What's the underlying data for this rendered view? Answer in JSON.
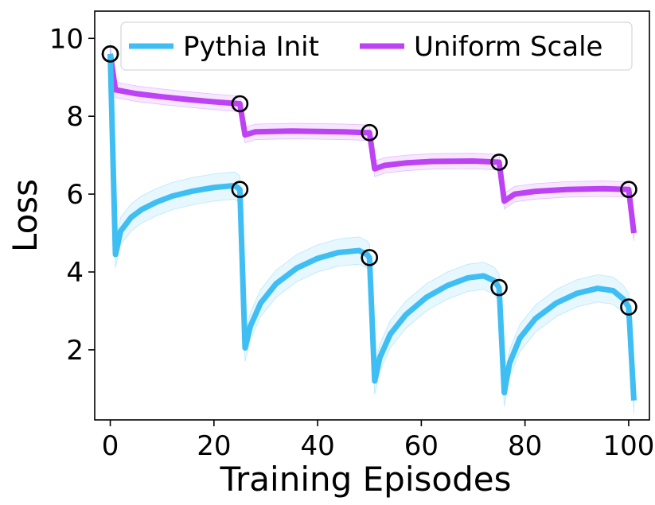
{
  "chart_data": {
    "type": "line",
    "xlabel": "Training Episodes",
    "ylabel": "Loss",
    "xlim": [
      -3,
      104
    ],
    "ylim": [
      0.2,
      10.7
    ],
    "xticks": [
      0,
      20,
      40,
      60,
      80,
      100
    ],
    "yticks": [
      2,
      4,
      6,
      8,
      10
    ],
    "legend_position": "top",
    "grid": false,
    "series": [
      {
        "name": "Pythia Init",
        "color": "#3fbef4",
        "band_width": 0.35,
        "markers": [
          [
            0,
            9.6
          ],
          [
            25,
            6.12
          ],
          [
            50,
            4.37
          ],
          [
            75,
            3.6
          ],
          [
            100,
            3.1
          ]
        ],
        "points": [
          [
            0,
            9.6
          ],
          [
            1,
            4.45
          ],
          [
            2,
            5.05
          ],
          [
            4,
            5.4
          ],
          [
            6,
            5.6
          ],
          [
            9,
            5.8
          ],
          [
            12,
            5.95
          ],
          [
            16,
            6.08
          ],
          [
            20,
            6.17
          ],
          [
            24,
            6.22
          ],
          [
            25,
            6.12
          ],
          [
            26,
            2.05
          ],
          [
            27,
            2.6
          ],
          [
            29,
            3.2
          ],
          [
            32,
            3.7
          ],
          [
            36,
            4.1
          ],
          [
            40,
            4.35
          ],
          [
            44,
            4.5
          ],
          [
            48,
            4.55
          ],
          [
            49.5,
            4.45
          ],
          [
            50,
            4.37
          ],
          [
            51,
            1.2
          ],
          [
            52,
            1.8
          ],
          [
            54,
            2.4
          ],
          [
            57,
            2.9
          ],
          [
            61,
            3.35
          ],
          [
            65,
            3.65
          ],
          [
            69,
            3.85
          ],
          [
            72,
            3.9
          ],
          [
            74,
            3.78
          ],
          [
            75,
            3.6
          ],
          [
            76,
            0.9
          ],
          [
            77,
            1.65
          ],
          [
            79,
            2.3
          ],
          [
            82,
            2.8
          ],
          [
            86,
            3.2
          ],
          [
            90,
            3.45
          ],
          [
            94,
            3.58
          ],
          [
            97,
            3.52
          ],
          [
            99,
            3.3
          ],
          [
            100,
            3.1
          ],
          [
            101,
            0.7
          ]
        ]
      },
      {
        "name": "Uniform Scale",
        "color": "#bd42f4",
        "band_width": 0.2,
        "markers": [
          [
            0,
            9.6
          ],
          [
            25,
            8.32
          ],
          [
            50,
            7.58
          ],
          [
            75,
            6.82
          ],
          [
            100,
            6.12
          ]
        ],
        "points": [
          [
            0,
            9.6
          ],
          [
            1,
            8.68
          ],
          [
            5,
            8.58
          ],
          [
            10,
            8.5
          ],
          [
            15,
            8.43
          ],
          [
            20,
            8.37
          ],
          [
            24,
            8.33
          ],
          [
            25,
            8.32
          ],
          [
            26,
            7.52
          ],
          [
            28,
            7.6
          ],
          [
            35,
            7.62
          ],
          [
            45,
            7.6
          ],
          [
            49,
            7.58
          ],
          [
            50,
            7.58
          ],
          [
            51,
            6.65
          ],
          [
            53,
            6.74
          ],
          [
            57,
            6.8
          ],
          [
            62,
            6.84
          ],
          [
            70,
            6.85
          ],
          [
            75,
            6.82
          ],
          [
            76,
            5.82
          ],
          [
            78,
            6.0
          ],
          [
            82,
            6.07
          ],
          [
            88,
            6.12
          ],
          [
            95,
            6.14
          ],
          [
            100,
            6.12
          ],
          [
            101,
            5.0
          ]
        ]
      }
    ]
  }
}
